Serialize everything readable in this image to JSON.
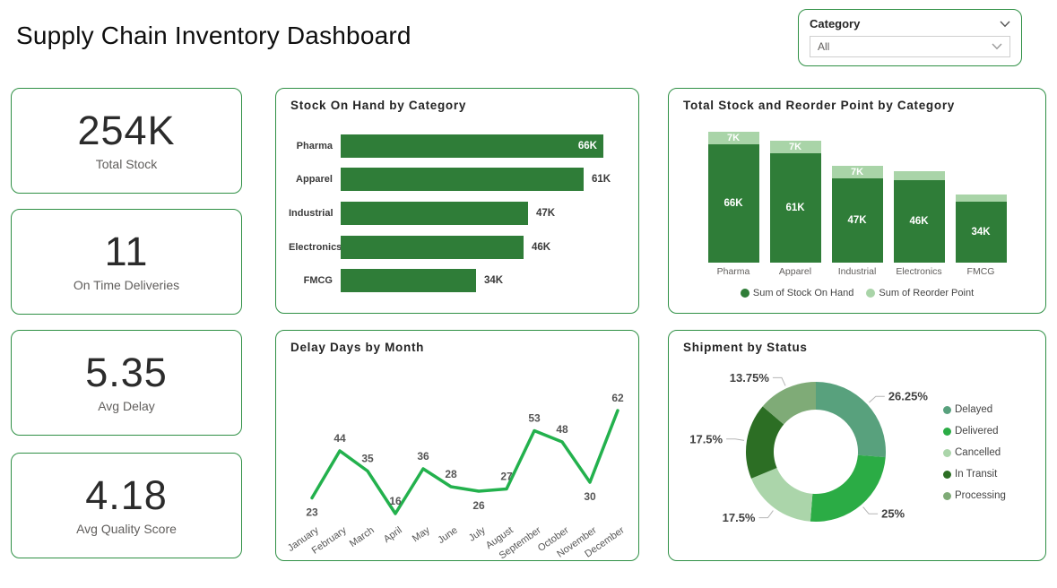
{
  "header": {
    "title": "Supply Chain Inventory Dashboard"
  },
  "filter": {
    "label": "Category",
    "value": "All"
  },
  "kpis": [
    {
      "value": "254K",
      "label": "Total Stock"
    },
    {
      "value": "11",
      "label": "On Time Deliveries"
    },
    {
      "value": "5.35",
      "label": "Avg Delay"
    },
    {
      "value": "4.18",
      "label": "Avg Quality Score"
    }
  ],
  "colors": {
    "card_border": "#2f9045",
    "bar_green": "#2f7d38",
    "light_green": "#a9d4a8",
    "line_green": "#23b14d",
    "title_text": "#252525",
    "muted_text": "#605e5c"
  },
  "chart_data": [
    {
      "id": "stock_on_hand",
      "type": "bar",
      "orientation": "horizontal",
      "title": "Stock On Hand by Category",
      "categories": [
        "Pharma",
        "Apparel",
        "Industrial",
        "Electronics",
        "FMCG"
      ],
      "values": [
        66,
        61,
        47,
        46,
        34
      ],
      "value_labels": [
        "66K",
        "61K",
        "47K",
        "46K",
        "34K"
      ],
      "unit": "K",
      "xlim": [
        0,
        66
      ],
      "bar_color": "#2f7d38"
    },
    {
      "id": "stock_reorder",
      "type": "bar",
      "stacked": true,
      "title": "Total Stock and Reorder Point by Category",
      "categories": [
        "Pharma",
        "Apparel",
        "Industrial",
        "Electronics",
        "FMCG"
      ],
      "series": [
        {
          "name": "Sum of Stock On Hand",
          "color": "#2f7d38",
          "values": [
            66,
            61,
            47,
            46,
            34
          ],
          "value_labels": [
            "66K",
            "61K",
            "47K",
            "46K",
            "34K"
          ]
        },
        {
          "name": "Sum of Reorder Point",
          "color": "#a9d4a8",
          "values": [
            7,
            7,
            7,
            5,
            4
          ],
          "value_labels": [
            "7K",
            "7K",
            "7K",
            "",
            ""
          ]
        }
      ],
      "legend_position": "bottom"
    },
    {
      "id": "delay_days",
      "type": "line",
      "title": "Delay Days by Month",
      "categories": [
        "January",
        "February",
        "March",
        "April",
        "May",
        "June",
        "July",
        "August",
        "September",
        "October",
        "November",
        "December"
      ],
      "values": [
        23,
        44,
        35,
        16,
        36,
        28,
        26,
        27,
        53,
        48,
        30,
        62
      ],
      "line_color": "#23b14d",
      "ylim": [
        16,
        62
      ]
    },
    {
      "id": "shipment_status",
      "type": "pie",
      "donut": true,
      "title": "Shipment by Status",
      "slices": [
        {
          "label": "Delayed",
          "value_pct": 26.25,
          "display": "26.25%",
          "color": "#58a17d"
        },
        {
          "label": "Delivered",
          "value_pct": 25,
          "display": "25%",
          "color": "#2bac45"
        },
        {
          "label": "Cancelled",
          "value_pct": 17.5,
          "display": "17.5%",
          "color": "#abd5aa"
        },
        {
          "label": "In Transit",
          "value_pct": 17.5,
          "display": "17.5%",
          "color": "#2c6e24"
        },
        {
          "label": "Processing",
          "value_pct": 13.75,
          "display": "13.75%",
          "color": "#7fab77"
        }
      ],
      "legend_position": "right"
    }
  ]
}
